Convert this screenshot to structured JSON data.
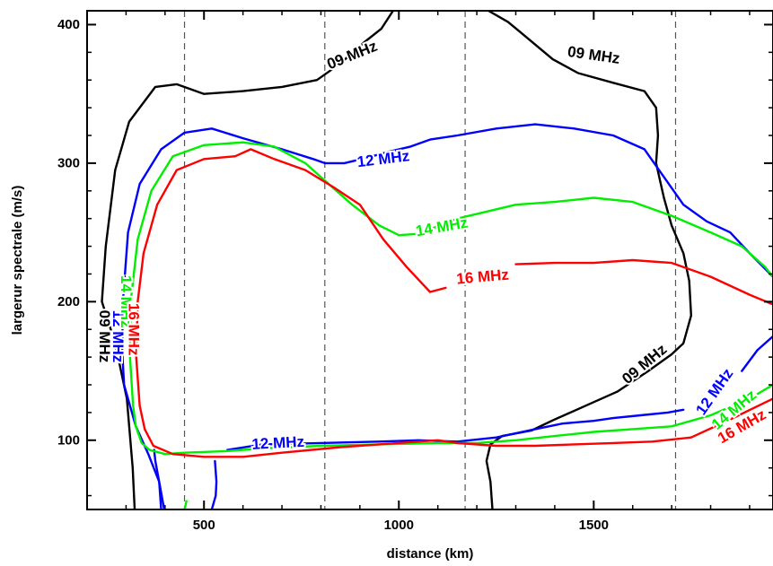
{
  "chart_data": {
    "type": "line",
    "title": "",
    "xlabel": "distance (km)",
    "ylabel": "largerur spectrale (m/s)",
    "xlim": [
      200,
      1960
    ],
    "ylim": [
      50,
      410
    ],
    "x_ticks": [
      {
        "value": 500,
        "label": "500"
      },
      {
        "value": 1000,
        "label": "1000"
      },
      {
        "value": 1500,
        "label": "1500"
      }
    ],
    "y_ticks": [
      {
        "value": 100,
        "label": "100"
      },
      {
        "value": 200,
        "label": "200"
      },
      {
        "value": 300,
        "label": "300"
      },
      {
        "value": 400,
        "label": "400"
      }
    ],
    "vlines": [
      450,
      810,
      1170,
      1710
    ],
    "grid": false,
    "series": [
      {
        "name": "09 MHz",
        "color": "#000000",
        "segments": [
          [
            [
              322,
              50
            ],
            [
              317,
              80
            ],
            [
              302,
              130
            ],
            [
              272,
              170
            ],
            [
              238,
              200
            ],
            [
              248,
              240
            ],
            [
              272,
              295
            ],
            [
              308,
              330
            ],
            [
              375,
              355
            ],
            [
              430,
              357
            ],
            [
              500,
              350
            ],
            [
              600,
              352
            ],
            [
              700,
              355
            ],
            [
              790,
              360
            ],
            [
              850,
              372
            ],
            [
              910,
              387
            ],
            [
              955,
              397
            ],
            [
              985,
              410
            ]
          ],
          [
            [
              1230,
              410
            ],
            [
              1280,
              402
            ],
            [
              1310,
              395
            ],
            [
              1395,
              375
            ],
            [
              1460,
              365
            ],
            [
              1550,
              358
            ],
            [
              1630,
              352
            ],
            [
              1660,
              340
            ],
            [
              1665,
              320
            ],
            [
              1660,
              300
            ],
            [
              1680,
              275
            ],
            [
              1700,
              255
            ],
            [
              1730,
              235
            ],
            [
              1745,
              215
            ],
            [
              1750,
              190
            ],
            [
              1730,
              170
            ],
            [
              1700,
              162
            ],
            [
              1640,
              150
            ],
            [
              1560,
              135
            ],
            [
              1480,
              125
            ],
            [
              1400,
              115
            ],
            [
              1340,
              107
            ],
            [
              1265,
              103
            ],
            [
              1235,
              97
            ],
            [
              1225,
              85
            ],
            [
              1235,
              70
            ],
            [
              1240,
              50
            ]
          ]
        ],
        "labels": [
          {
            "text": "09 MHz",
            "x": 880,
            "y": 378,
            "rotate": -22
          },
          {
            "text": "09 MHz",
            "x": 1500,
            "y": 378,
            "rotate": 8
          },
          {
            "text": "09 MHz",
            "x": 1630,
            "y": 155,
            "rotate": -40
          },
          {
            "text": "09 MHz",
            "x": 245,
            "y": 175,
            "rotate": 90
          }
        ]
      },
      {
        "name": "12 MHz",
        "color": "#0000ff",
        "segments": [
          [
            [
              398,
              50
            ],
            [
              385,
              70
            ],
            [
              357,
              90
            ],
            [
              325,
              110
            ],
            [
              295,
              140
            ],
            [
              290,
              165
            ],
            [
              292,
              200
            ],
            [
              305,
              250
            ],
            [
              335,
              285
            ],
            [
              390,
              310
            ],
            [
              450,
              322
            ],
            [
              520,
              325
            ],
            [
              600,
              318
            ],
            [
              700,
              310
            ],
            [
              780,
              303
            ],
            [
              810,
              300
            ],
            [
              860,
              300
            ],
            [
              920,
              304
            ],
            [
              970,
              308
            ],
            [
              1030,
              312
            ],
            [
              1080,
              317
            ],
            [
              1150,
              320
            ],
            [
              1250,
              325
            ],
            [
              1350,
              328
            ],
            [
              1450,
              325
            ],
            [
              1550,
              320
            ],
            [
              1630,
              310
            ],
            [
              1680,
              290
            ],
            [
              1730,
              270
            ],
            [
              1790,
              258
            ],
            [
              1850,
              250
            ],
            [
              1900,
              235
            ],
            [
              1960,
              218
            ]
          ],
          [
            [
              390,
              50
            ],
            [
              385,
              70
            ],
            [
              375,
              85
            ],
            [
              372,
              93
            ]
          ],
          [
            [
              520,
              50
            ],
            [
              530,
              60
            ],
            [
              532,
              70
            ],
            [
              528,
              85
            ]
          ],
          [
            [
              560,
              93
            ],
            [
              650,
              97
            ],
            [
              800,
              98
            ],
            [
              950,
              99
            ],
            [
              1050,
              100
            ],
            [
              1150,
              99
            ],
            [
              1250,
              102
            ],
            [
              1350,
              108
            ],
            [
              1420,
              112
            ],
            [
              1500,
              114
            ],
            [
              1550,
              116
            ],
            [
              1620,
              118
            ],
            [
              1690,
              120
            ],
            [
              1730,
              122
            ]
          ],
          [
            [
              1880,
              150
            ],
            [
              1920,
              165
            ],
            [
              1960,
              175
            ]
          ]
        ],
        "labels": [
          {
            "text": "12 MHz",
            "x": 960,
            "y": 303,
            "rotate": -7
          },
          {
            "text": "12 MHz",
            "x": 690,
            "y": 98,
            "rotate": -3
          },
          {
            "text": "12 MHz",
            "x": 280,
            "y": 175,
            "rotate": 90
          },
          {
            "text": "12 MHz",
            "x": 1810,
            "y": 135,
            "rotate": -55
          }
        ]
      },
      {
        "name": "14 MHz",
        "color": "#00ee00",
        "segments": [
          [
            [
              325,
              110
            ],
            [
              340,
              98
            ],
            [
              360,
              93
            ],
            [
              400,
              90
            ],
            [
              450,
              91
            ],
            [
              550,
              92
            ],
            [
              650,
              94
            ],
            [
              800,
              96
            ],
            [
              950,
              97
            ],
            [
              1100,
              98
            ],
            [
              1200,
              98
            ],
            [
              1300,
              100
            ],
            [
              1400,
              103
            ],
            [
              1500,
              106
            ],
            [
              1600,
              108
            ],
            [
              1700,
              110
            ],
            [
              1800,
              118
            ],
            [
              1900,
              130
            ],
            [
              1960,
              140
            ]
          ],
          [
            [
              325,
              110
            ],
            [
              318,
              125
            ],
            [
              310,
              160
            ],
            [
              312,
              200
            ],
            [
              330,
              245
            ],
            [
              365,
              280
            ],
            [
              420,
              305
            ],
            [
              500,
              313
            ],
            [
              600,
              315
            ],
            [
              680,
              312
            ],
            [
              760,
              300
            ],
            [
              820,
              285
            ],
            [
              880,
              270
            ],
            [
              950,
              255
            ],
            [
              1000,
              248
            ],
            [
              1050,
              249
            ],
            [
              1150,
              260
            ],
            [
              1300,
              270
            ],
            [
              1400,
              272
            ],
            [
              1500,
              275
            ],
            [
              1600,
              272
            ],
            [
              1700,
              262
            ],
            [
              1800,
              250
            ],
            [
              1880,
              240
            ],
            [
              1940,
              225
            ],
            [
              1960,
              218
            ]
          ],
          [
            [
              450,
              50
            ],
            [
              455,
              56
            ]
          ]
        ],
        "labels": [
          {
            "text": "14 MHz",
            "x": 1110,
            "y": 254,
            "rotate": -10
          },
          {
            "text": "14 MHz",
            "x": 300,
            "y": 200,
            "rotate": 90
          },
          {
            "text": "14 MHz",
            "x": 1860,
            "y": 122,
            "rotate": -40
          }
        ]
      },
      {
        "name": "16 MHz",
        "color": "#ff0000",
        "segments": [
          [
            [
              348,
              108
            ],
            [
              370,
              96
            ],
            [
              420,
              90
            ],
            [
              500,
              88
            ],
            [
              600,
              88
            ],
            [
              700,
              91
            ],
            [
              850,
              95
            ],
            [
              950,
              97
            ],
            [
              1050,
              99
            ],
            [
              1100,
              100
            ],
            [
              1150,
              98
            ],
            [
              1250,
              96
            ],
            [
              1350,
              96
            ],
            [
              1450,
              97
            ],
            [
              1550,
              98
            ],
            [
              1650,
              99
            ],
            [
              1750,
              102
            ],
            [
              1850,
              115
            ],
            [
              1960,
              130
            ]
          ],
          [
            [
              348,
              108
            ],
            [
              335,
              125
            ],
            [
              326,
              160
            ],
            [
              330,
              200
            ],
            [
              345,
              235
            ],
            [
              380,
              270
            ],
            [
              430,
              295
            ],
            [
              500,
              303
            ],
            [
              580,
              305
            ],
            [
              620,
              310
            ],
            [
              680,
              303
            ],
            [
              760,
              295
            ],
            [
              830,
              283
            ],
            [
              900,
              270
            ],
            [
              960,
              245
            ],
            [
              1020,
              225
            ],
            [
              1080,
              207
            ],
            [
              1120,
              210
            ]
          ],
          [
            [
              1300,
              227
            ],
            [
              1400,
              228
            ],
            [
              1500,
              228
            ],
            [
              1600,
              230
            ],
            [
              1700,
              228
            ],
            [
              1800,
              218
            ],
            [
              1900,
              205
            ],
            [
              1960,
              198
            ]
          ]
        ],
        "labels": [
          {
            "text": "16 MHz",
            "x": 1215,
            "y": 218,
            "rotate": -5
          },
          {
            "text": "16 MHz",
            "x": 320,
            "y": 180,
            "rotate": 90
          },
          {
            "text": "16 MHz",
            "x": 1880,
            "y": 110,
            "rotate": -30
          }
        ]
      }
    ]
  }
}
